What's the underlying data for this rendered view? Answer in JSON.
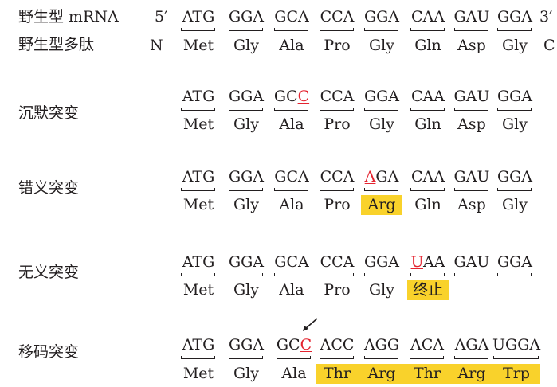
{
  "rows": [
    {
      "label": "野生型 mRNA",
      "label2": "野生型多肽",
      "end5": "5′",
      "end3": "3′",
      "endN": "N",
      "endC": "C",
      "codons": [
        {
          "pre": "",
          "mut": "",
          "post": "ATG"
        },
        {
          "pre": "",
          "mut": "",
          "post": "GGA"
        },
        {
          "pre": "",
          "mut": "",
          "post": "GCA"
        },
        {
          "pre": "",
          "mut": "",
          "post": "CCA"
        },
        {
          "pre": "",
          "mut": "",
          "post": "GGA"
        },
        {
          "pre": "",
          "mut": "",
          "post": "CAA"
        },
        {
          "pre": "",
          "mut": "",
          "post": "GAU"
        },
        {
          "pre": "",
          "mut": "",
          "post": "GGA"
        }
      ],
      "aas": [
        "Met",
        "Gly",
        "Ala",
        "Pro",
        "Gly",
        "Gln",
        "Asp",
        "Gly"
      ]
    },
    {
      "label": "沉默突变",
      "codons": [
        {
          "pre": "",
          "mut": "",
          "post": "ATG"
        },
        {
          "pre": "",
          "mut": "",
          "post": "GGA"
        },
        {
          "pre": "GC",
          "mut": "C",
          "post": ""
        },
        {
          "pre": "",
          "mut": "",
          "post": "CCA"
        },
        {
          "pre": "",
          "mut": "",
          "post": "GGA"
        },
        {
          "pre": "",
          "mut": "",
          "post": "CAA"
        },
        {
          "pre": "",
          "mut": "",
          "post": "GAU"
        },
        {
          "pre": "",
          "mut": "",
          "post": "GGA"
        }
      ],
      "aas": [
        "Met",
        "Gly",
        "Ala",
        "Pro",
        "Gly",
        "Gln",
        "Asp",
        "Gly"
      ]
    },
    {
      "label": "错义突变",
      "codons": [
        {
          "pre": "",
          "mut": "",
          "post": "ATG"
        },
        {
          "pre": "",
          "mut": "",
          "post": "GGA"
        },
        {
          "pre": "",
          "mut": "",
          "post": "GCA"
        },
        {
          "pre": "",
          "mut": "",
          "post": "CCA"
        },
        {
          "pre": "",
          "mut": "A",
          "post": "GA"
        },
        {
          "pre": "",
          "mut": "",
          "post": "CAA"
        },
        {
          "pre": "",
          "mut": "",
          "post": "GAU"
        },
        {
          "pre": "",
          "mut": "",
          "post": "GGA"
        }
      ],
      "aas": [
        "Met",
        "Gly",
        "Ala",
        "Pro",
        "Arg",
        "Gln",
        "Asp",
        "Gly"
      ],
      "highlight": [
        4
      ]
    },
    {
      "label": "无义突变",
      "codons": [
        {
          "pre": "",
          "mut": "",
          "post": "ATG"
        },
        {
          "pre": "",
          "mut": "",
          "post": "GGA"
        },
        {
          "pre": "",
          "mut": "",
          "post": "GCA"
        },
        {
          "pre": "",
          "mut": "",
          "post": "CCA"
        },
        {
          "pre": "",
          "mut": "",
          "post": "GGA"
        },
        {
          "pre": "",
          "mut": "U",
          "post": "AA"
        },
        {
          "pre": "",
          "mut": "",
          "post": "GAU"
        },
        {
          "pre": "",
          "mut": "",
          "post": "GGA"
        }
      ],
      "aas": [
        "Met",
        "Gly",
        "Ala",
        "Pro",
        "Gly",
        "终止",
        "",
        ""
      ],
      "highlight": [
        5
      ]
    },
    {
      "label": "移码突变",
      "codons": [
        {
          "pre": "",
          "mut": "",
          "post": "ATG"
        },
        {
          "pre": "",
          "mut": "",
          "post": "GGA"
        },
        {
          "pre": "GC",
          "mut": "C",
          "post": ""
        },
        {
          "pre": "",
          "mut": "",
          "post": "ACC"
        },
        {
          "pre": "",
          "mut": "",
          "post": "AGG"
        },
        {
          "pre": "",
          "mut": "",
          "post": "ACA"
        },
        {
          "pre": "",
          "mut": "",
          "post": "AGA"
        },
        {
          "pre": "",
          "mut": "",
          "post": "UGGA"
        }
      ],
      "aas": [
        "Met",
        "Gly",
        "Ala",
        "Thr",
        "Arg",
        "Thr",
        "Arg",
        "Trp"
      ],
      "highlight": [
        3,
        4,
        5,
        6,
        7
      ],
      "insertion_arrow": true
    }
  ],
  "colors": {
    "text": "#231f20",
    "mutation": "#e4232f",
    "highlight": "#f9d22b"
  }
}
